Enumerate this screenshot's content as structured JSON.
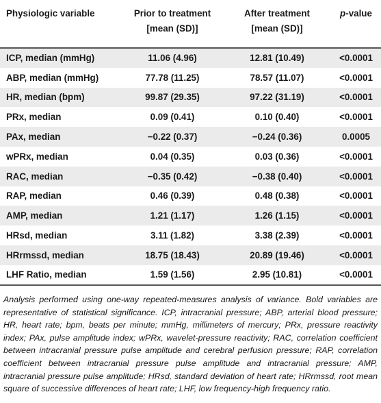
{
  "table": {
    "headers": {
      "col1": "Physiologic variable",
      "col2_line1": "Prior to treatment",
      "col2_line2": "[mean (SD)]",
      "col3_line1": "After treatment",
      "col3_line2": "[mean (SD)]",
      "col4_italic": "p",
      "col4_suffix": "-value"
    },
    "rows": [
      {
        "variable": "ICP, median (mmHg)",
        "prior": "11.06 (4.96)",
        "after": "12.81 (10.49)",
        "p": "<0.0001"
      },
      {
        "variable": "ABP, median (mmHg)",
        "prior": "77.78 (11.25)",
        "after": "78.57 (11.07)",
        "p": "<0.0001"
      },
      {
        "variable": "HR, median (bpm)",
        "prior": "99.87 (29.35)",
        "after": "97.22 (31.19)",
        "p": "<0.0001"
      },
      {
        "variable": "PRx, median",
        "prior": "0.09 (0.41)",
        "after": "0.10 (0.40)",
        "p": "<0.0001"
      },
      {
        "variable": "PAx, median",
        "prior": "−0.22 (0.37)",
        "after": "−0.24 (0.36)",
        "p": "0.0005"
      },
      {
        "variable": "wPRx, median",
        "prior": "0.04 (0.35)",
        "after": "0.03 (0.36)",
        "p": "<0.0001"
      },
      {
        "variable": "RAC, median",
        "prior": "−0.35 (0.42)",
        "after": "−0.38 (0.40)",
        "p": "<0.0001"
      },
      {
        "variable": "RAP, median",
        "prior": "0.46 (0.39)",
        "after": "0.48 (0.38)",
        "p": "<0.0001"
      },
      {
        "variable": "AMP, median",
        "prior": "1.21 (1.17)",
        "after": "1.26 (1.15)",
        "p": "<0.0001"
      },
      {
        "variable": "HRsd, median",
        "prior": "3.11 (1.82)",
        "after": "3.38 (2.39)",
        "p": "<0.0001"
      },
      {
        "variable": "HRrmssd, median",
        "prior": "18.75 (18.43)",
        "after": "20.89 (19.46)",
        "p": "<0.0001"
      },
      {
        "variable": "LHF Ratio, median",
        "prior": "1.59 (1.56)",
        "after": "2.95 (10.81)",
        "p": "<0.0001"
      }
    ]
  },
  "footnote": "Analysis performed using one-way repeated-measures analysis of variance. Bold variables are representative of statistical significance. ICP, intracranial pressure; ABP, arterial blood pressure; HR, heart rate; bpm, beats per minute; mmHg, millimeters of mercury; PRx, pressure reactivity index; PAx, pulse amplitude index; wPRx, wavelet-pressure reactivity; RAC, correlation coefficient between intracranial pressure pulse amplitude and cerebral perfusion pressure; RAP, correlation coefficient between intracranial pressure pulse amplitude and intracranial pressure; AMP, intracranial pressure pulse amplitude; HRsd, standard deviation of heart rate; HRrmssd, root mean square of successive differences of heart rate; LHF, low frequency-high frequency ratio."
}
